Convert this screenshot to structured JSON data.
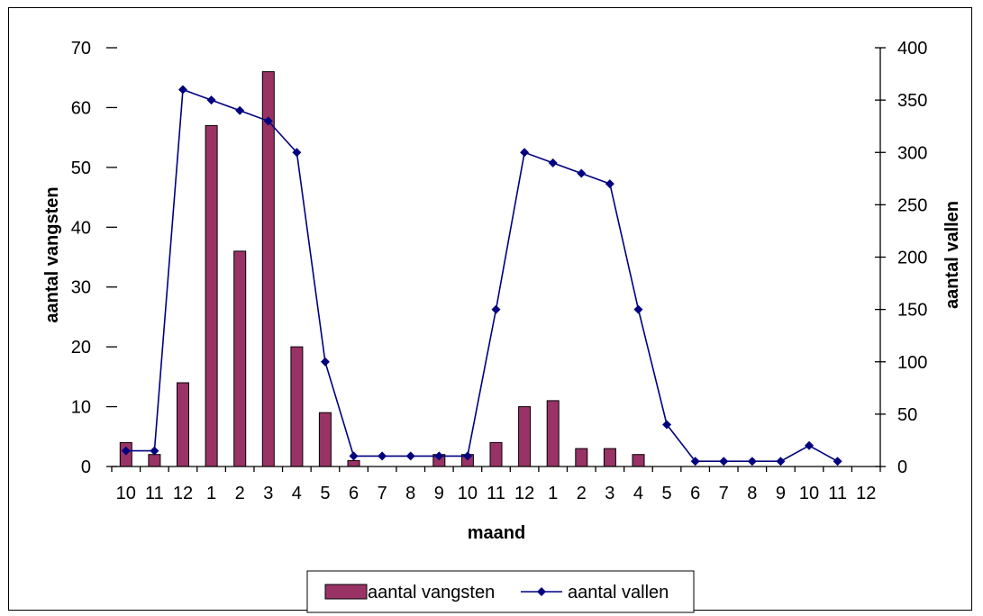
{
  "chart_data": {
    "type": "bar",
    "categories": [
      "10",
      "11",
      "12",
      "1",
      "2",
      "3",
      "4",
      "5",
      "6",
      "7",
      "8",
      "9",
      "10",
      "11",
      "12",
      "1",
      "2",
      "3",
      "4",
      "5",
      "6",
      "7",
      "8",
      "9",
      "10",
      "11",
      "12"
    ],
    "xlabel": "maand",
    "ylabel": "aantal vangsten",
    "y2label": "aantal vallen",
    "ylim": [
      0,
      70
    ],
    "y2lim": [
      0,
      400
    ],
    "yticks": [
      "0",
      "10",
      "20",
      "30",
      "40",
      "50",
      "60",
      "70"
    ],
    "y2ticks": [
      "0",
      "50",
      "100",
      "150",
      "200",
      "250",
      "300",
      "350",
      "400"
    ],
    "legend_position": "bottom",
    "series": [
      {
        "name": "aantal vangsten",
        "type": "bar",
        "axis": "left",
        "color": "#993366",
        "values": [
          4,
          2,
          14,
          57,
          36,
          66,
          20,
          9,
          1,
          null,
          null,
          2,
          2,
          4,
          10,
          11,
          3,
          3,
          2,
          null,
          null,
          null,
          null,
          null,
          null,
          null,
          null
        ]
      },
      {
        "name": "aantal vallen",
        "type": "line",
        "axis": "right",
        "color": "#000080",
        "values": [
          15,
          15,
          360,
          350,
          340,
          330,
          300,
          100,
          10,
          10,
          10,
          10,
          10,
          150,
          300,
          290,
          280,
          270,
          150,
          40,
          5,
          5,
          5,
          5,
          20,
          5,
          null
        ]
      }
    ]
  }
}
